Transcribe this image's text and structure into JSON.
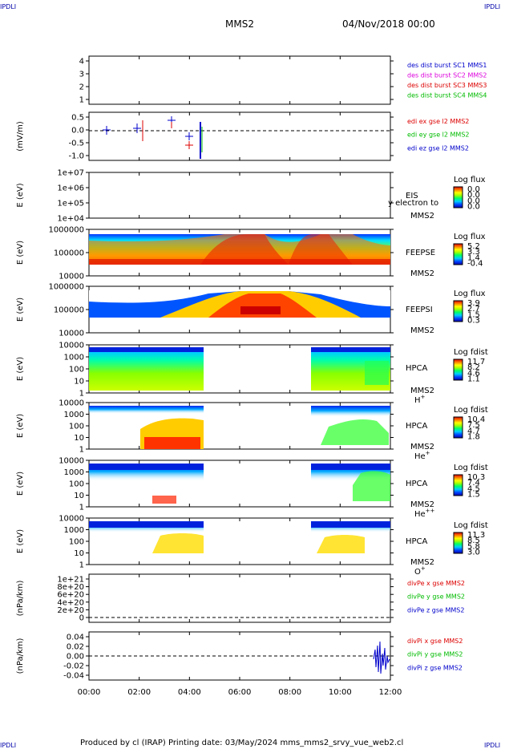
{
  "header": {
    "corner_label": "IPDLI",
    "title": "MMS2",
    "date": "04/Nov/2018 00:00"
  },
  "footer": {
    "text": "Produced by cl (IRAP)   Printing date: 03/May/2024   mms_mms2_srvy_vue_web2.cl"
  },
  "colors": {
    "red": "#dd0000",
    "green": "#00bb00",
    "blue": "#0000cc",
    "magenta": "#dd00dd",
    "axis": "#000000",
    "background": "#ffffff"
  },
  "chart_data": {
    "type": "line",
    "x_axis": {
      "range": [
        "00:00",
        "12:00"
      ],
      "ticks": [
        "00:00",
        "02:00",
        "04:00",
        "06:00",
        "08:00",
        "10:00",
        "12:00"
      ]
    },
    "panels": [
      {
        "id": "burst",
        "ylabel": "",
        "ytick_labels": [
          "4",
          "3",
          "2",
          "1"
        ],
        "legend": [
          {
            "text": "des dist burst SC1 MMS1",
            "color": "#0000cc"
          },
          {
            "text": "des dist burst SC2 MMS2",
            "color": "#dd00dd"
          },
          {
            "text": "des dist burst SC3 MMS3",
            "color": "#dd0000"
          },
          {
            "text": "des dist burst SC4 MMS4",
            "color": "#00bb00"
          }
        ]
      },
      {
        "id": "edi",
        "ylabel": "(mV/m)",
        "ytick_labels": [
          "0.5",
          "0.0",
          "-0.5",
          "-1.0"
        ],
        "legend": [
          {
            "text": "edi ex gse l2 MMS2",
            "color": "#dd0000"
          },
          {
            "text": "edi ey gse l2 MMS2",
            "color": "#00bb00"
          },
          {
            "text": "edi ez gse l2 MMS2",
            "color": "#0000cc"
          }
        ]
      },
      {
        "id": "eis",
        "ylabel": "E (eV)",
        "ytick_labels": [
          "1e+07",
          "1e+06",
          "1e+05",
          "1e+04"
        ],
        "instrument": [
          "EIS",
          "MMS2"
        ],
        "overlay_text": "y electron to",
        "colorbar": {
          "title": "Log flux",
          "labels": [
            "0.0",
            "0.0",
            "0.0",
            "0.0"
          ]
        }
      },
      {
        "id": "feepse",
        "ylabel": "E (eV)",
        "ytick_labels": [
          "1000000",
          "100000",
          "10000"
        ],
        "instrument": [
          "FEEPSE",
          "MMS2"
        ],
        "colorbar": {
          "title": "Log flux",
          "labels": [
            "5.2",
            "3.3",
            "1.4",
            "-0.4"
          ]
        }
      },
      {
        "id": "feepsi",
        "ylabel": "E (eV)",
        "ytick_labels": [
          "1000000",
          "100000",
          "10000"
        ],
        "instrument": [
          "FEEPSI",
          "MMS2"
        ],
        "colorbar": {
          "title": "Log flux",
          "labels": [
            "3.9",
            "2.7",
            "1.5",
            "0.3"
          ]
        }
      },
      {
        "id": "hpca_h",
        "ylabel": "E (eV)",
        "ytick_labels": [
          "10000",
          "1000",
          "100",
          "10",
          "1"
        ],
        "instrument": [
          "HPCA",
          "MMS2"
        ],
        "species": {
          "base": "H",
          "sup": "+"
        },
        "colorbar": {
          "title": "Log fdist",
          "labels": [
            "11.7",
            "8.2",
            "4.6",
            "1.1"
          ]
        }
      },
      {
        "id": "hpca_he",
        "ylabel": "E (eV)",
        "ytick_labels": [
          "10000",
          "1000",
          "100",
          "10",
          "1"
        ],
        "instrument": [
          "HPCA",
          "MMS2"
        ],
        "species": {
          "base": "He",
          "sup": "+"
        },
        "colorbar": {
          "title": "Log fdist",
          "labels": [
            "10.4",
            "7.5",
            "4.7",
            "1.8"
          ]
        }
      },
      {
        "id": "hpca_hepp",
        "ylabel": "E (eV)",
        "ytick_labels": [
          "10000",
          "1000",
          "100",
          "10",
          "1"
        ],
        "instrument": [
          "HPCA",
          "MMS2"
        ],
        "species": {
          "base": "He",
          "sup": "++"
        },
        "colorbar": {
          "title": "Log fdist",
          "labels": [
            "10.3",
            "7.4",
            "4.5",
            "1.5"
          ]
        }
      },
      {
        "id": "hpca_o",
        "ylabel": "E (eV)",
        "ytick_labels": [
          "10000",
          "1000",
          "100",
          "10",
          "1"
        ],
        "instrument": [
          "HPCA",
          "MMS2"
        ],
        "species": {
          "base": "O",
          "sup": "+"
        },
        "colorbar": {
          "title": "Log fdist",
          "labels": [
            "11.3",
            "8.5",
            "5.8",
            "3.0"
          ]
        }
      },
      {
        "id": "divpe",
        "ylabel": "(nPa/km)",
        "ytick_labels": [
          "1e+21",
          "8e+20",
          "6e+20",
          "4e+20",
          "2e+20",
          "0"
        ],
        "legend": [
          {
            "text": "divPe x gse MMS2",
            "color": "#dd0000"
          },
          {
            "text": "divPe y gse MMS2",
            "color": "#00bb00"
          },
          {
            "text": "divPe z gse MMS2",
            "color": "#0000cc"
          }
        ]
      },
      {
        "id": "divpi",
        "ylabel": "(nPa/km)",
        "ytick_labels": [
          "0.04",
          "0.02",
          "0.00",
          "-0.02",
          "-0.04"
        ],
        "legend": [
          {
            "text": "divPi x gse MMS2",
            "color": "#dd0000"
          },
          {
            "text": "divPi y gse MMS2",
            "color": "#00bb00"
          },
          {
            "text": "divPi z gse MMS2",
            "color": "#0000cc"
          }
        ]
      }
    ]
  }
}
